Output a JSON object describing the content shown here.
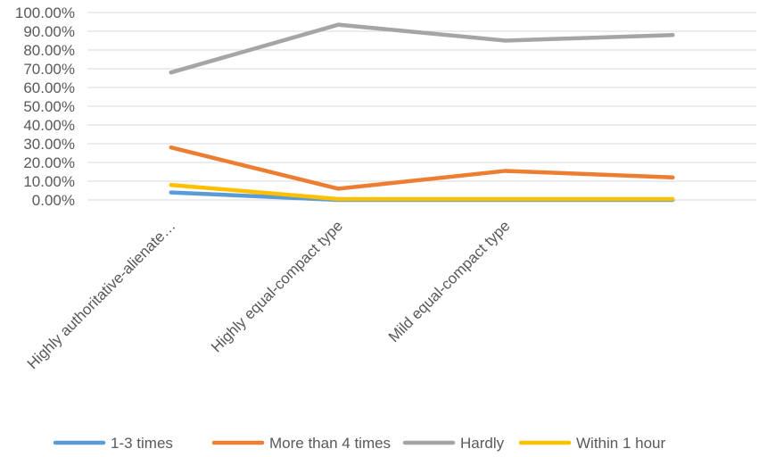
{
  "chart_data": {
    "type": "line",
    "categories": [
      "Highly authoritative-alienate…",
      "Highly equal-compact type",
      "Mild equal-compact type",
      ""
    ],
    "y_ticks": [
      "0.00%",
      "10.00%",
      "20.00%",
      "30.00%",
      "40.00%",
      "50.00%",
      "60.00%",
      "70.00%",
      "80.00%",
      "90.00%",
      "100.00%"
    ],
    "ylim": [
      0,
      100
    ],
    "grid": true,
    "legend_position": "bottom",
    "series": [
      {
        "name": "1-3 times",
        "color": "#5b9bd5",
        "values": [
          4.0,
          0.0,
          0.0,
          0.0
        ]
      },
      {
        "name": "More than 4 times",
        "color": "#ed7d31",
        "values": [
          28.0,
          6.0,
          15.5,
          12.0
        ]
      },
      {
        "name": "Hardly",
        "color": "#a5a5a5",
        "values": [
          68.0,
          93.5,
          85.0,
          88.0
        ]
      },
      {
        "name": "Within 1 hour",
        "color": "#ffc000",
        "values": [
          8.0,
          0.5,
          0.5,
          0.5
        ]
      }
    ]
  }
}
